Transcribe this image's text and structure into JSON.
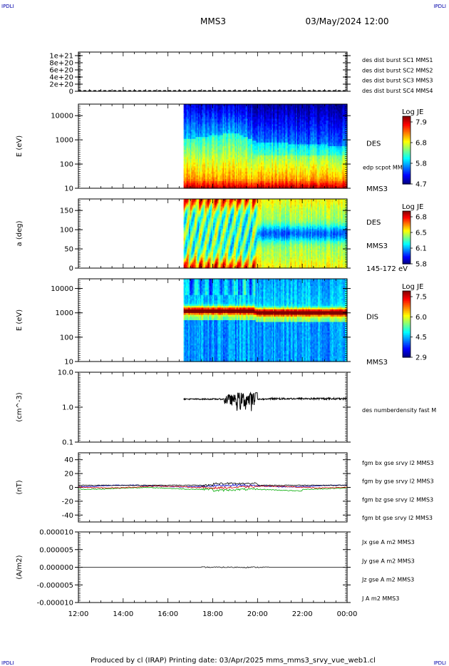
{
  "header": {
    "corner_label": "IPDLI",
    "spacecraft": "MMS3",
    "datetime": "03/May/2024 12:00"
  },
  "footer": {
    "text": "Produced by cl (IRAP)   Printing date: 03/Apr/2025   mms_mms3_srvy_vue_web1.cl"
  },
  "time_axis": {
    "labels": [
      "12:00",
      "14:00",
      "16:00",
      "18:00",
      "20:00",
      "22:00",
      "00:00"
    ],
    "start_hour": 12,
    "end_hour": 24
  },
  "chart_data": [
    {
      "type": "line",
      "id": "burst",
      "ylim": [
        0,
        1.1e+21
      ],
      "yticks": [
        {
          "v": 0,
          "label": "0"
        },
        {
          "v": 2e+20,
          "label": "2e+20"
        },
        {
          "v": 4e+20,
          "label": "4e+20"
        },
        {
          "v": 6e+20,
          "label": "6e+20"
        },
        {
          "v": 8e+20,
          "label": "8e+20"
        },
        {
          "v": 1e+21,
          "label": "1e+21"
        }
      ],
      "ylabel": "",
      "dashed_level": 0,
      "legend": [
        {
          "name": "des dist burst SC1 MMS1",
          "color": "#0000cc"
        },
        {
          "name": "des dist burst SC2 MMS2",
          "color": "#cc00cc"
        },
        {
          "name": "des dist burst SC3 MMS3",
          "color": "#cc0000"
        },
        {
          "name": "des dist burst SC4 MMS4",
          "color": "#00bb00"
        }
      ]
    },
    {
      "type": "heatmap",
      "id": "des_energy",
      "scale": "log",
      "ylim": [
        10,
        30000
      ],
      "yticks": [
        {
          "v": 10,
          "label": "10"
        },
        {
          "v": 100,
          "label": "100"
        },
        {
          "v": 1000,
          "label": "1000"
        },
        {
          "v": 10000,
          "label": "10000"
        }
      ],
      "ylabel": "E (eV)",
      "data_start_hour": 16.7,
      "right_labels": [
        {
          "text": "DES",
          "pos": 0.47,
          "size": 10
        },
        {
          "text": "edp scpot MMS3",
          "pos": 0.75,
          "size": 8
        },
        {
          "text": "MMS3",
          "pos": 1.0,
          "size": 10
        }
      ],
      "colorbar": {
        "label": "Log JE",
        "ticks": [
          "7.9",
          "6.8",
          "5.8",
          "4.7"
        ]
      }
    },
    {
      "type": "heatmap",
      "id": "des_pitch",
      "scale": "linear",
      "ylim": [
        0,
        180
      ],
      "yticks": [
        {
          "v": 0,
          "label": "0"
        },
        {
          "v": 50,
          "label": "50"
        },
        {
          "v": 100,
          "label": "100"
        },
        {
          "v": 150,
          "label": "150"
        }
      ],
      "ylabel": "a (deg)",
      "data_start_hour": 16.7,
      "right_labels": [
        {
          "text": "DES",
          "pos": 0.34,
          "size": 10
        },
        {
          "text": "MMS3",
          "pos": 0.68,
          "size": 10
        },
        {
          "text": "145-172 eV",
          "pos": 1.0,
          "size": 10
        }
      ],
      "colorbar": {
        "label": "Log JE",
        "ticks": [
          "6.8",
          "6.5",
          "6.1",
          "5.8"
        ]
      }
    },
    {
      "type": "heatmap",
      "id": "dis_energy",
      "scale": "log",
      "ylim": [
        10,
        25000
      ],
      "yticks": [
        {
          "v": 10,
          "label": "10"
        },
        {
          "v": 100,
          "label": "100"
        },
        {
          "v": 1000,
          "label": "1000"
        },
        {
          "v": 10000,
          "label": "10000"
        }
      ],
      "ylabel": "E (eV)",
      "data_start_hour": 16.7,
      "right_labels": [
        {
          "text": "DIS",
          "pos": 0.46,
          "size": 10
        },
        {
          "text": "MMS3",
          "pos": 1.0,
          "size": 10
        }
      ],
      "colorbar": {
        "label": "Log JE",
        "ticks": [
          "7.5",
          "6.0",
          "4.5",
          "2.9"
        ]
      }
    },
    {
      "type": "line",
      "id": "density",
      "scale": "log",
      "ylim": [
        0.1,
        10
      ],
      "yticks": [
        {
          "v": 0.1,
          "label": "0.1"
        },
        {
          "v": 1,
          "label": "1.0"
        },
        {
          "v": 10,
          "label": "10.0"
        }
      ],
      "ylabel": "(cm^-3)",
      "data_start_hour": 16.7,
      "base_value": 1.7,
      "legend": [
        {
          "name": "des numberdensity fast M",
          "color": "#000000"
        }
      ]
    },
    {
      "type": "line",
      "id": "fgm",
      "ylim": [
        -50,
        50
      ],
      "yticks": [
        {
          "v": -40,
          "label": "-40"
        },
        {
          "v": -20,
          "label": "-20"
        },
        {
          "v": 0,
          "label": "0"
        },
        {
          "v": 20,
          "label": "20"
        },
        {
          "v": 40,
          "label": "40"
        }
      ],
      "ylabel": "(nT)",
      "legend": [
        {
          "name": "fgm bx gse srvy l2 MMS3",
          "color": "#cc0000"
        },
        {
          "name": "fgm by gse srvy l2 MMS3",
          "color": "#00aa00"
        },
        {
          "name": "fgm bz gse srvy l2 MMS3",
          "color": "#0000cc"
        },
        {
          "name": "fgm bt gse srvy l2 MMS3",
          "color": "#000000"
        }
      ]
    },
    {
      "type": "line",
      "id": "current",
      "ylim": [
        -1e-05,
        1e-05
      ],
      "yticks": [
        {
          "v": -1e-05,
          "label": "-0.000010"
        },
        {
          "v": -5e-06,
          "label": "-0.000005"
        },
        {
          "v": 0,
          "label": "0.000000"
        },
        {
          "v": 5e-06,
          "label": "0.000005"
        },
        {
          "v": 1e-05,
          "label": "0.000010"
        }
      ],
      "ylabel": "(A/m2)",
      "legend": [
        {
          "name": "Jx gse A m2 MMS3",
          "color": "#cc0000"
        },
        {
          "name": "Jy gse A m2 MMS3",
          "color": "#00aa00"
        },
        {
          "name": "Jz gse A m2 MMS3",
          "color": "#0000cc"
        },
        {
          "name": "J A m2 MMS3",
          "color": "#000000"
        }
      ]
    }
  ]
}
